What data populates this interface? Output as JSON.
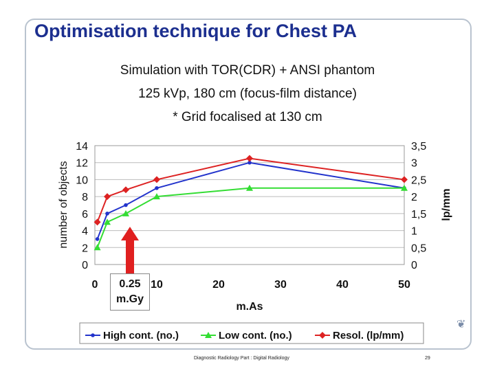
{
  "slide": {
    "title": "Optimisation technique for Chest PA",
    "subtitle_lines": [
      "Simulation with TOR(CDR) + ANSI phantom",
      "125 kVp, 180 cm (focus-film distance)",
      "* Grid focalised at 130 cm"
    ],
    "annotation": [
      "0.25",
      "m.Gy"
    ],
    "footer_left": "Diagnostic Radiology Part : Digital Radiology",
    "footer_right": "29"
  },
  "chart_data": {
    "type": "line",
    "xlabel": "m.As",
    "ylabel": "number of objects",
    "y2label": "lp/mm",
    "xlim": [
      0,
      50
    ],
    "ylim": [
      0,
      14
    ],
    "y2lim": [
      0,
      3.5
    ],
    "x_ticks": [
      "0",
      "10",
      "20",
      "30",
      "40",
      "50"
    ],
    "y_ticks": [
      "0",
      "2",
      "4",
      "6",
      "8",
      "10",
      "12",
      "14"
    ],
    "y2_ticks": [
      "0",
      "0,5",
      "1",
      "1,5",
      "2",
      "2,5",
      "3",
      "3,5"
    ],
    "grid": "horizontal",
    "legend_position": "bottom",
    "series": [
      {
        "name": "High cont. (no.)",
        "axis": "left",
        "color": "#2233cc",
        "marker": "dot",
        "x": [
          0.4,
          2,
          5,
          10,
          25,
          50
        ],
        "y": [
          3,
          6,
          7,
          9,
          12,
          9
        ]
      },
      {
        "name": "Low cont. (no.)",
        "axis": "left",
        "color": "#33dd33",
        "marker": "triangle",
        "x": [
          0.4,
          2,
          5,
          10,
          25,
          50
        ],
        "y": [
          2,
          5,
          6,
          8,
          9,
          9
        ]
      },
      {
        "name": "Resol. (lp/mm)",
        "axis": "right",
        "color": "#dd2222",
        "marker": "diamond",
        "x": [
          0.4,
          2,
          5,
          10,
          25,
          50
        ],
        "y": [
          1.25,
          2.0,
          2.2,
          2.5,
          3.125,
          2.5
        ]
      }
    ]
  }
}
